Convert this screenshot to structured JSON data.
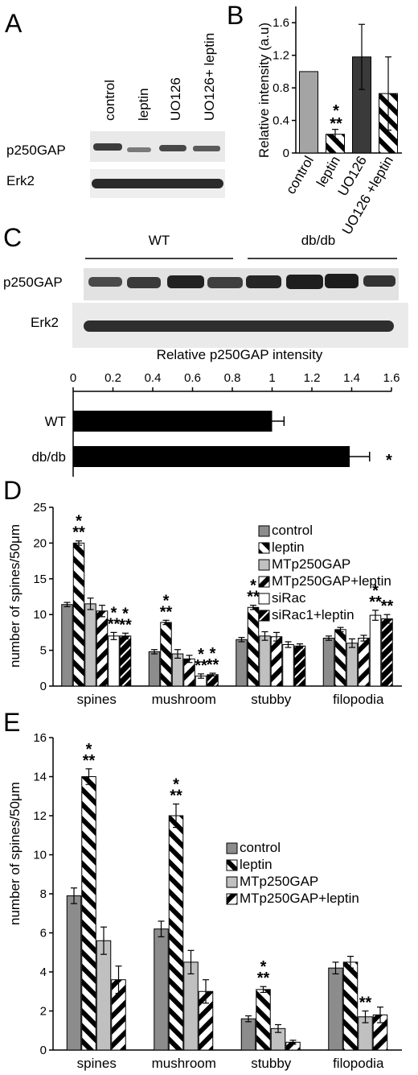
{
  "colors": {
    "control": "#8c8c8c",
    "mt": "#c0c0c0",
    "ucontrol": "#a4a4a4",
    "uo126": "#3a3a3a",
    "erk_band": "#2a2a2a"
  },
  "panels": {
    "A": {
      "letter": "A",
      "lanes": [
        "control",
        "leptin",
        "UO126",
        "UO126+ leptin"
      ],
      "rows": [
        "p250GAP",
        "Erk2"
      ]
    },
    "B": {
      "letter": "B",
      "ylabel": "Relative intensity (a.u)",
      "asterisks": [
        "*",
        "**"
      ]
    },
    "C": {
      "letter": "C",
      "groups": [
        "WT",
        "db/db"
      ],
      "rows": [
        "p250GAP",
        "Erk2"
      ],
      "asterisk": "*"
    },
    "D": {
      "letter": "D",
      "ylabel": "number of spines/50μm",
      "legend": [
        "control",
        "leptin",
        "MTp250GAP",
        "MTp250GAP+leptin",
        "siRac",
        "siRac1+leptin"
      ]
    },
    "E": {
      "letter": "E",
      "ylabel": "number of spines/50μm",
      "legend": [
        "control",
        "leptin",
        "MTp250GAP",
        "MTp250GAP+leptin"
      ]
    }
  },
  "chart_data": [
    {
      "id": "B",
      "type": "bar",
      "categories": [
        "control",
        "leptin",
        "UO126",
        "UO126 +leptin"
      ],
      "values": [
        1.0,
        0.23,
        1.18,
        0.73
      ],
      "errors": [
        0.0,
        0.06,
        0.4,
        0.45
      ],
      "fills": [
        "ucontrol",
        "hatch",
        "uo126",
        "hatch"
      ],
      "ylabel": "Relative intensity (a.u)",
      "ylim": [
        0,
        1.8
      ],
      "yticks": [
        0,
        0.4,
        0.8,
        1.2,
        1.6
      ],
      "ytick_labels": [
        "0",
        "0.4",
        "0.8",
        "1.2",
        "1.6"
      ]
    },
    {
      "id": "C",
      "type": "bar",
      "orientation": "horizontal",
      "title": "Relative p250GAP intensity",
      "categories": [
        "WT",
        "db/db"
      ],
      "values": [
        1.0,
        1.39
      ],
      "errors": [
        0.06,
        0.1
      ],
      "xlim": [
        0,
        1.6
      ],
      "xticks": [
        0,
        0.2,
        0.4,
        0.6,
        0.8,
        1,
        1.2,
        1.4,
        1.6
      ],
      "xtick_labels": [
        "0",
        "0.2",
        "0.4",
        "0.6",
        "0.8",
        "1",
        "1.2",
        "1.4",
        "1.6"
      ]
    },
    {
      "id": "D",
      "type": "bar",
      "categories": [
        "spines",
        "mushroom",
        "stubby",
        "filopodia"
      ],
      "ylabel": "number of spines/50μm",
      "ylim": [
        0,
        25
      ],
      "yticks": [
        0,
        5,
        10,
        15,
        20,
        25
      ],
      "ytick_labels": [
        "0",
        "5",
        "10",
        "15",
        "20",
        "25"
      ],
      "legend_position": "top-right",
      "series": [
        {
          "name": "control",
          "fill": "control",
          "values": [
            11.4,
            4.8,
            6.5,
            6.7
          ],
          "errors": [
            0.3,
            0.3,
            0.3,
            0.3
          ]
        },
        {
          "name": "leptin",
          "fill": "hatch",
          "values": [
            20.0,
            8.9,
            11.0,
            7.9
          ],
          "errors": [
            0.3,
            0.3,
            0.3,
            0.3
          ]
        },
        {
          "name": "MTp250GAP",
          "fill": "mt",
          "values": [
            11.5,
            4.5,
            7.0,
            6.0
          ],
          "errors": [
            0.8,
            0.6,
            0.6,
            0.6
          ]
        },
        {
          "name": "MTp250GAP+leptin",
          "fill": "hatch-rev",
          "values": [
            10.5,
            3.8,
            6.9,
            6.7
          ],
          "errors": [
            0.8,
            0.5,
            0.6,
            0.4
          ]
        },
        {
          "name": "siRac",
          "fill": "white",
          "values": [
            7.0,
            1.4,
            5.8,
            9.9
          ],
          "errors": [
            0.5,
            0.3,
            0.4,
            0.7
          ]
        },
        {
          "name": "siRac1+leptin",
          "fill": "black-hatch",
          "values": [
            7.0,
            1.6,
            5.6,
            9.4
          ],
          "errors": [
            0.4,
            0.2,
            0.3,
            0.6
          ]
        }
      ],
      "annotations": [
        {
          "category": 0,
          "series": 1,
          "text": [
            "*",
            "**"
          ]
        },
        {
          "category": 0,
          "series": 4,
          "text": [
            "*",
            "**"
          ]
        },
        {
          "category": 0,
          "series": 5,
          "text": [
            "*",
            "**"
          ]
        },
        {
          "category": 1,
          "series": 1,
          "text": [
            "*",
            "**"
          ]
        },
        {
          "category": 1,
          "series": 4,
          "text": [
            "*",
            "**"
          ]
        },
        {
          "category": 1,
          "series": 5,
          "text": [
            "*",
            "**"
          ]
        },
        {
          "category": 2,
          "series": 1,
          "text": [
            "*",
            "**"
          ]
        },
        {
          "category": 3,
          "series": 4,
          "text": [
            "*",
            "**"
          ]
        },
        {
          "category": 3,
          "series": 5,
          "text": [
            "",
            "**"
          ]
        }
      ]
    },
    {
      "id": "E",
      "type": "bar",
      "categories": [
        "spines",
        "mushroom",
        "stubby",
        "filopodia"
      ],
      "ylabel": "number of spines/50μm",
      "ylim": [
        0,
        16
      ],
      "yticks": [
        0,
        2,
        4,
        6,
        8,
        10,
        12,
        14,
        16
      ],
      "ytick_labels": [
        "0",
        "2",
        "4",
        "6",
        "8",
        "10",
        "12",
        "14",
        "16"
      ],
      "legend_position": "top-right",
      "series": [
        {
          "name": "control",
          "fill": "control",
          "values": [
            7.9,
            6.2,
            1.6,
            4.2
          ],
          "errors": [
            0.4,
            0.4,
            0.15,
            0.3
          ]
        },
        {
          "name": "leptin",
          "fill": "hatch",
          "values": [
            14.0,
            12.0,
            3.1,
            4.5
          ],
          "errors": [
            0.4,
            0.6,
            0.15,
            0.3
          ]
        },
        {
          "name": "MTp250GAP",
          "fill": "mt",
          "values": [
            5.6,
            4.5,
            1.1,
            1.7
          ],
          "errors": [
            0.7,
            0.6,
            0.2,
            0.3
          ]
        },
        {
          "name": "MTp250GAP+leptin",
          "fill": "hatch-rev",
          "values": [
            3.6,
            3.0,
            0.4,
            1.8
          ],
          "errors": [
            0.7,
            0.6,
            0.1,
            0.4
          ]
        }
      ],
      "annotations": [
        {
          "category": 0,
          "series": 1,
          "text": [
            "*",
            "**"
          ]
        },
        {
          "category": 1,
          "series": 1,
          "text": [
            "*",
            "**"
          ]
        },
        {
          "category": 2,
          "series": 1,
          "text": [
            "*",
            "**"
          ]
        },
        {
          "category": 3,
          "series": 2,
          "text": [
            "",
            "**"
          ]
        }
      ]
    }
  ]
}
